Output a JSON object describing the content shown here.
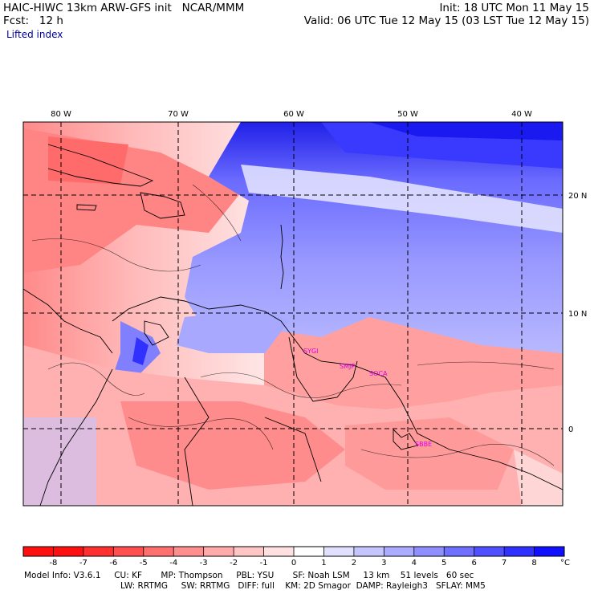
{
  "header": {
    "model_line": "HAIC-HIWC 13km ARW-GFS init   NCAR/MMM",
    "fcst_line": "Fcst:   12 h",
    "init_line": "Init: 18 UTC Mon 11 May 15",
    "valid_line": "Valid: 06 UTC Tue 12 May 15 (03 LST Tue 12 May 15)",
    "field": "Lifted index"
  },
  "map": {
    "lon_labels": [
      "80 W",
      "70 W",
      "60 W",
      "50 W",
      "40 W"
    ],
    "lat_labels": [
      "20 N",
      "10 N",
      "0"
    ],
    "stations": [
      "SYGI",
      "SMJP",
      "SOCA",
      "SBBE"
    ]
  },
  "colorbar": {
    "ticks": [
      "-8",
      "-7",
      "-6",
      "-5",
      "-4",
      "-3",
      "-2",
      "-1",
      "0",
      "1",
      "2",
      "3",
      "4",
      "5",
      "6",
      "7",
      "8"
    ],
    "unit": "°C",
    "colors": [
      "#ff1010",
      "#ff3030",
      "#ff5050",
      "#ff7070",
      "#ff8f8f",
      "#ffabab",
      "#ffc6c6",
      "#ffe1e1",
      "#ffffff",
      "#e1e1ff",
      "#c6c6ff",
      "#ababff",
      "#8f8fff",
      "#7070ff",
      "#5050ff",
      "#3030ff",
      "#1010ff"
    ]
  },
  "footer": {
    "line1": "Model Info: V3.6.1     CU: KF       MP: Thompson     PBL: YSU       SF: Noah LSM     13 km    51 levels   60 sec",
    "line2": "LW: RRTMG     SW: RRTMG   DIFF: full    KM: 2D Smagor  DAMP: Rayleigh3   SFLAY: MM5"
  }
}
